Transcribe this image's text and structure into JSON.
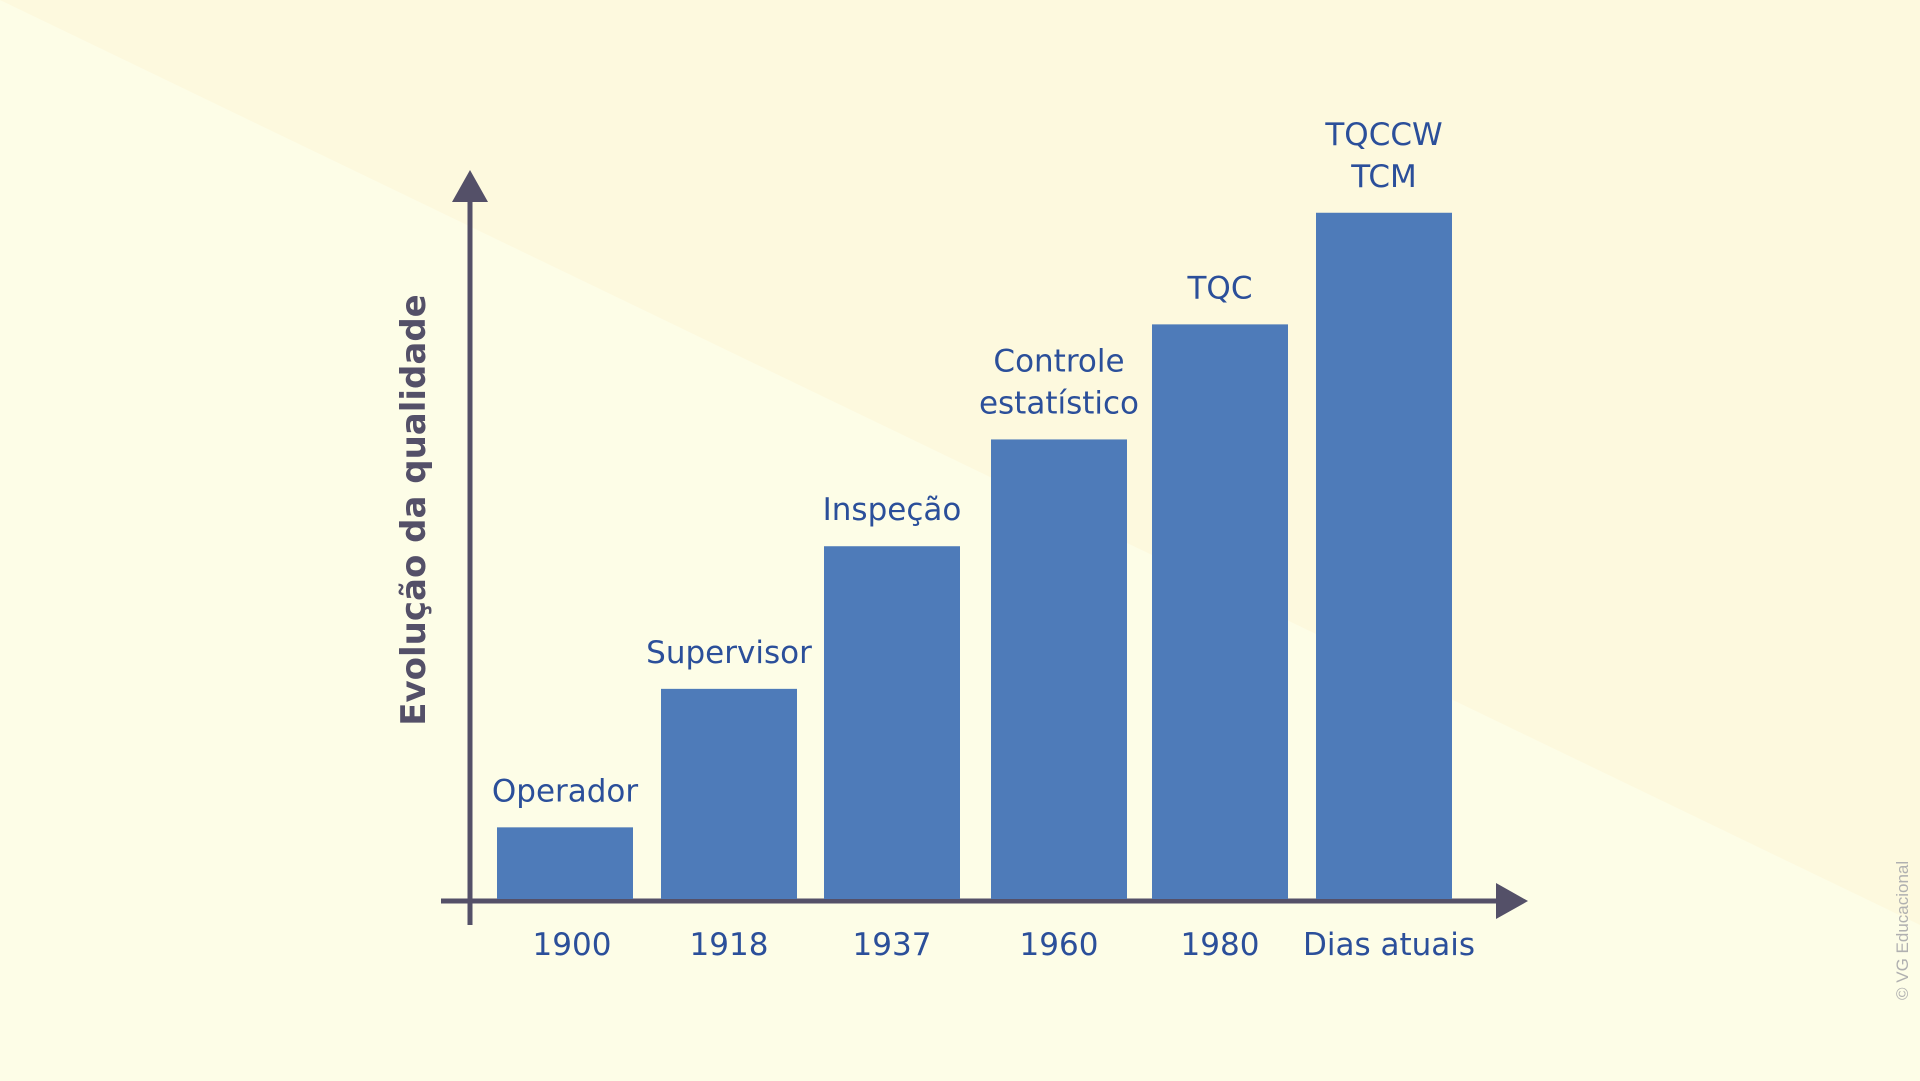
{
  "chart_data": {
    "type": "bar",
    "ylabel": "Evolução da qualidade",
    "categories": [
      "1900",
      "1918",
      "1937",
      "1960",
      "1980",
      "Dias atuais"
    ],
    "values": [
      1,
      2,
      3,
      4,
      5,
      6
    ],
    "bar_labels": [
      [
        "Operador"
      ],
      [
        "Supervisor"
      ],
      [
        "Inspeção"
      ],
      [
        "Controle",
        "estatístico"
      ],
      [
        "TQC"
      ],
      [
        "TQCCW",
        "TCM"
      ]
    ],
    "bar_heights": [
      0.104,
      0.305,
      0.512,
      0.667,
      0.834,
      0.996
    ],
    "colors": {
      "bar": "#4e7bb9",
      "axis": "#545068",
      "label": "#2b4f9a",
      "background_light": "#fdfde6",
      "background_dark": "#fdf9dd"
    },
    "grid": false
  },
  "credit": "© VG Educacional"
}
